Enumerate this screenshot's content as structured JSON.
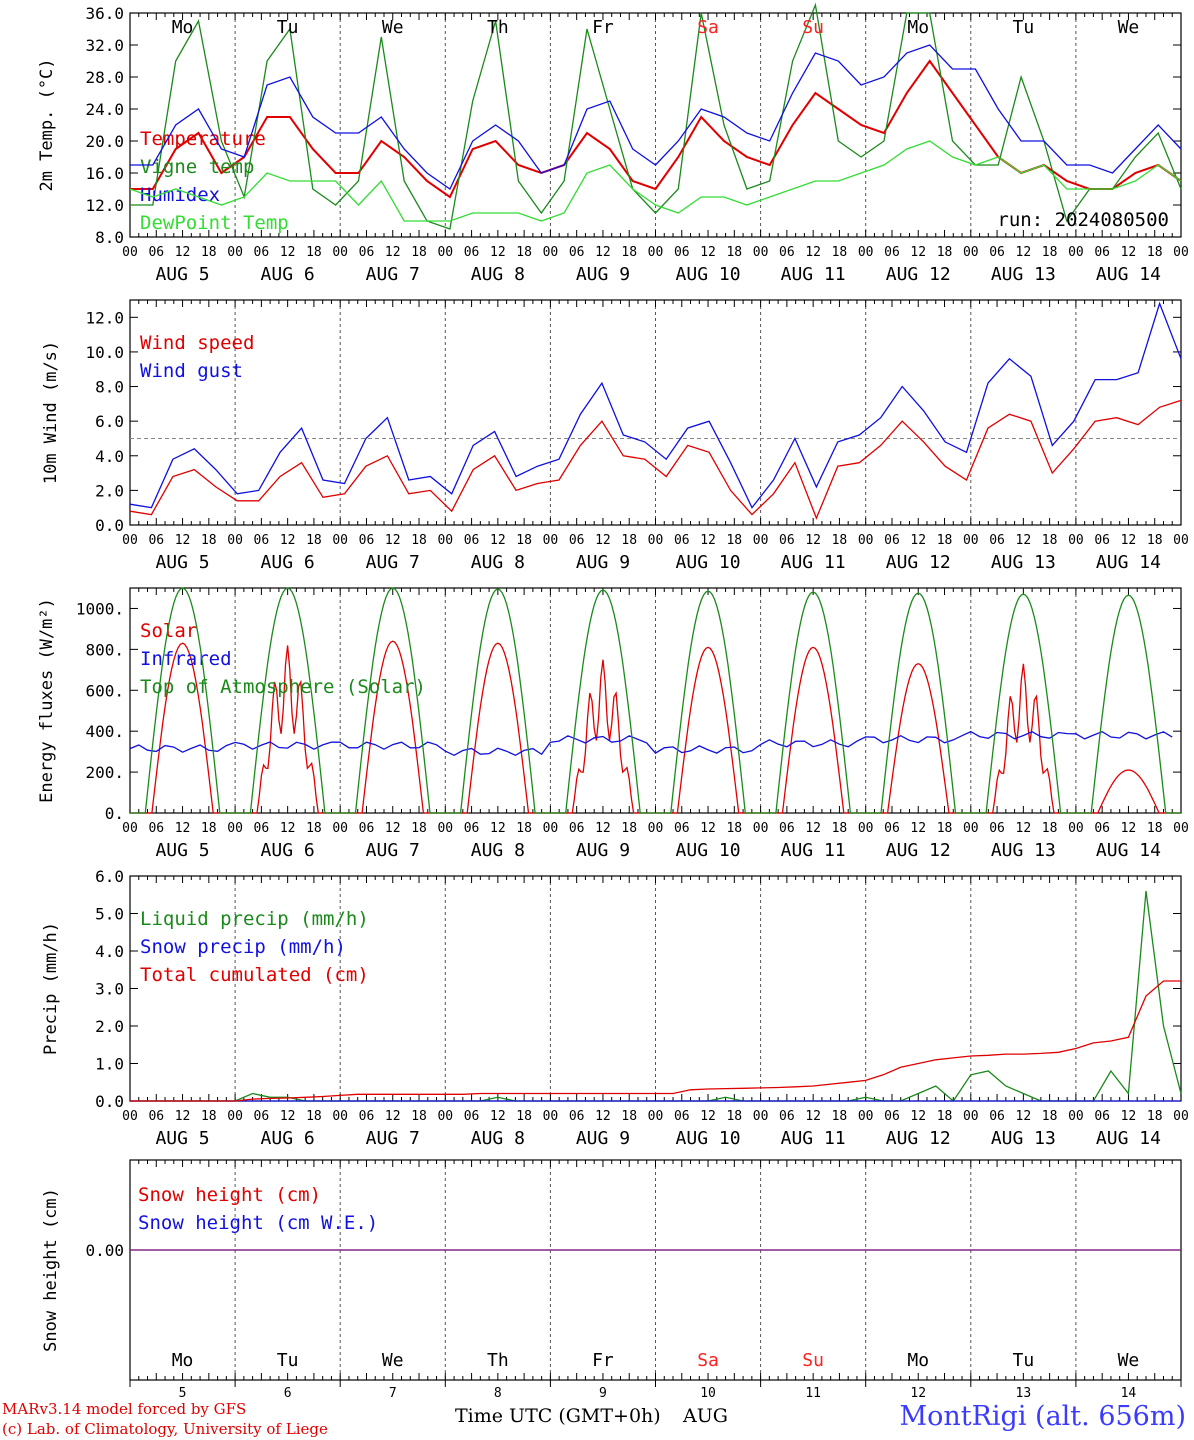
{
  "run_label": "run: 2024080500",
  "hour_labels": [
    "00",
    "06",
    "12",
    "18"
  ],
  "end_hour_label": "00",
  "days": [
    {
      "dow": "Mo",
      "date": "AUG  5",
      "num": "5",
      "dow_color": "#000000"
    },
    {
      "dow": "Tu",
      "date": "AUG  6",
      "num": "6",
      "dow_color": "#000000"
    },
    {
      "dow": "We",
      "date": "AUG  7",
      "num": "7",
      "dow_color": "#000000"
    },
    {
      "dow": "Th",
      "date": "AUG  8",
      "num": "8",
      "dow_color": "#000000"
    },
    {
      "dow": "Fr",
      "date": "AUG  9",
      "num": "9",
      "dow_color": "#000000"
    },
    {
      "dow": "Sa",
      "date": "AUG 10",
      "num": "10",
      "dow_color": "#ff2020"
    },
    {
      "dow": "Su",
      "date": "AUG 11",
      "num": "11",
      "dow_color": "#ff2020"
    },
    {
      "dow": "Mo",
      "date": "AUG 12",
      "num": "12",
      "dow_color": "#000000"
    },
    {
      "dow": "Tu",
      "date": "AUG 13",
      "num": "13",
      "dow_color": "#000000"
    },
    {
      "dow": "We",
      "date": "AUG 14",
      "num": "14",
      "dow_color": "#000000"
    }
  ],
  "footer": {
    "model_line": "MARv3.14 model forced by GFS",
    "copyright_line": "(c) Lab. of Climatology, University of Liege",
    "x_title": "Time UTC (GMT+0h)",
    "x_month": "AUG",
    "station": "MontRigi (alt. 656m)"
  },
  "colors": {
    "red": "#e00000",
    "green": "#1a8a1a",
    "blue": "#1010e0",
    "lightgreen": "#33dd33",
    "purple": "#7f1f7f"
  },
  "chart_data": [
    {
      "id": "temp",
      "type": "line",
      "ylabel": "2m Temp. (°C)",
      "ylim": [
        8,
        36
      ],
      "yticks": [
        "8.0",
        "12.0",
        "16.0",
        "20.0",
        "24.0",
        "28.0",
        "32.0",
        "36.0"
      ],
      "x_unit": "hours since AUG 5 00 UTC",
      "x_step": 6,
      "series": [
        {
          "name": "Temperature",
          "color": "red",
          "values": [
            14,
            14,
            19,
            21,
            16,
            18,
            23,
            23,
            19,
            16,
            16,
            20,
            18,
            15,
            13,
            19,
            20,
            17,
            16,
            17,
            21,
            19,
            15,
            14,
            18,
            23,
            20,
            18,
            17,
            22,
            26,
            24,
            22,
            21,
            26,
            30,
            26,
            22,
            18,
            16,
            17,
            15,
            14,
            14,
            16,
            17,
            15
          ]
        },
        {
          "name": "Vigne temp",
          "color": "green",
          "values": [
            12,
            12,
            30,
            35,
            20,
            13,
            30,
            34,
            14,
            12,
            15,
            33,
            15,
            10,
            9,
            25,
            35,
            15,
            11,
            15,
            34,
            24,
            14,
            11,
            14,
            36,
            22,
            14,
            15,
            30,
            37,
            20,
            18,
            20,
            36,
            36,
            20,
            17,
            17,
            28,
            20,
            10,
            14,
            14,
            18,
            21,
            14
          ]
        },
        {
          "name": "Humidex",
          "color": "blue",
          "values": [
            17,
            17,
            22,
            24,
            19,
            18,
            27,
            28,
            23,
            21,
            21,
            23,
            19,
            16,
            14,
            20,
            22,
            20,
            16,
            17,
            24,
            25,
            19,
            17,
            20,
            24,
            23,
            21,
            20,
            26,
            31,
            30,
            27,
            28,
            31,
            32,
            29,
            29,
            24,
            20,
            20,
            17,
            17,
            16,
            19,
            22,
            19
          ]
        },
        {
          "name": "DewPoint Temp",
          "color": "lightgreen",
          "values": [
            14,
            13,
            14,
            13,
            12,
            13,
            16,
            15,
            15,
            15,
            12,
            15,
            10,
            10,
            10,
            11,
            11,
            11,
            10,
            11,
            16,
            17,
            14,
            12,
            11,
            13,
            13,
            12,
            13,
            14,
            15,
            15,
            16,
            17,
            19,
            20,
            18,
            17,
            18,
            16,
            17,
            14,
            14,
            14,
            15,
            17,
            15
          ]
        }
      ]
    },
    {
      "id": "wind",
      "type": "line",
      "ylabel": "10m Wind (m/s)",
      "ylim": [
        0,
        13
      ],
      "yticks": [
        "0.0",
        "2.0",
        "4.0",
        "6.0",
        "8.0",
        "10.0",
        "12.0"
      ],
      "hline": 5,
      "x_unit": "hours since AUG 5 00 UTC",
      "x_step": 6,
      "series": [
        {
          "name": "Wind speed",
          "color": "red",
          "values": [
            0.8,
            0.6,
            2.8,
            3.2,
            2.2,
            1.4,
            1.4,
            2.8,
            3.6,
            1.6,
            1.8,
            3.4,
            4.0,
            1.8,
            2.0,
            0.8,
            3.2,
            4.0,
            2.0,
            2.4,
            2.6,
            4.6,
            6.0,
            4.0,
            3.8,
            2.8,
            4.6,
            4.2,
            2.0,
            0.6,
            1.8,
            3.6,
            0.4,
            3.4,
            3.6,
            4.6,
            6.0,
            4.8,
            3.4,
            2.6,
            5.6,
            6.4,
            6.0,
            3.0,
            4.4,
            6.0,
            6.2,
            5.8,
            6.8,
            7.2
          ]
        },
        {
          "name": "Wind gust",
          "color": "blue",
          "values": [
            1.2,
            1.0,
            3.8,
            4.4,
            3.2,
            1.8,
            2.0,
            4.2,
            5.6,
            2.6,
            2.4,
            5.0,
            6.2,
            2.6,
            2.8,
            1.8,
            4.6,
            5.4,
            2.8,
            3.4,
            3.8,
            6.4,
            8.2,
            5.2,
            4.8,
            3.8,
            5.6,
            6.0,
            3.6,
            1.0,
            2.6,
            5.0,
            2.2,
            4.8,
            5.2,
            6.2,
            8.0,
            6.6,
            4.8,
            4.2,
            8.2,
            9.6,
            8.6,
            4.6,
            6.0,
            8.4,
            8.4,
            8.8,
            12.8,
            9.6
          ]
        }
      ]
    },
    {
      "id": "energy",
      "type": "line",
      "ylabel": "Energy fluxes (W/m²)",
      "ylim": [
        0,
        1100
      ],
      "yticks": [
        "0.",
        "200.",
        "400.",
        "600.",
        "800.",
        "1000."
      ],
      "series": [
        {
          "name": "Solar",
          "color": "red",
          "daily_peak": [
            830,
            820,
            840,
            830,
            750,
            810,
            810,
            730,
            730,
            210
          ]
        },
        {
          "name": "Infrared",
          "color": "blue",
          "daily_level": [
            315,
            330,
            330,
            300,
            360,
            310,
            340,
            360,
            380,
            380
          ]
        },
        {
          "name": "Top of Atmosphere (Solar)",
          "color": "green",
          "daily_peak": [
            1100,
            1100,
            1100,
            1095,
            1090,
            1085,
            1080,
            1075,
            1070,
            1065
          ]
        }
      ]
    },
    {
      "id": "precip",
      "type": "line",
      "ylabel": "Precip (mm/h)",
      "ylim": [
        0,
        6
      ],
      "yticks": [
        "0.0",
        "1.0",
        "2.0",
        "3.0",
        "4.0",
        "5.0",
        "6.0"
      ],
      "x_unit": "hours since AUG 5 00 UTC",
      "x_step": 6,
      "series": [
        {
          "name": "Liquid precip (mm/h)",
          "color": "green",
          "values": [
            0,
            0,
            0,
            0,
            0,
            0,
            0,
            0.2,
            0.1,
            0.1,
            0,
            0,
            0,
            0,
            0,
            0,
            0,
            0,
            0,
            0,
            0,
            0.1,
            0,
            0,
            0,
            0,
            0,
            0,
            0,
            0,
            0,
            0,
            0,
            0,
            0.1,
            0,
            0,
            0,
            0,
            0,
            0,
            0,
            0.1,
            0,
            0,
            0.2,
            0.4,
            0,
            0.7,
            0.8,
            0.4,
            0.2,
            0,
            0,
            0,
            0,
            0.8,
            0.2,
            5.6,
            2.0,
            0.2
          ]
        },
        {
          "name": "Snow precip (mm/h)",
          "color": "blue",
          "values": [
            0,
            0,
            0,
            0,
            0,
            0,
            0,
            0,
            0,
            0,
            0,
            0,
            0,
            0,
            0,
            0,
            0,
            0,
            0,
            0,
            0,
            0,
            0,
            0,
            0,
            0,
            0,
            0,
            0,
            0,
            0,
            0,
            0,
            0,
            0,
            0,
            0,
            0,
            0,
            0,
            0,
            0,
            0,
            0,
            0,
            0,
            0,
            0,
            0,
            0,
            0,
            0,
            0,
            0,
            0,
            0,
            0,
            0,
            0,
            0,
            0
          ]
        },
        {
          "name": "Total cumulated (cm)",
          "color": "red",
          "values": [
            0,
            0,
            0,
            0,
            0,
            0,
            0,
            0.05,
            0.07,
            0.08,
            0.1,
            0.12,
            0.15,
            0.18,
            0.18,
            0.18,
            0.18,
            0.18,
            0.18,
            0.18,
            0.2,
            0.2,
            0.2,
            0.2,
            0.2,
            0.2,
            0.2,
            0.2,
            0.2,
            0.2,
            0.2,
            0.2,
            0.3,
            0.32,
            0.33,
            0.34,
            0.35,
            0.36,
            0.38,
            0.4,
            0.45,
            0.5,
            0.55,
            0.7,
            0.9,
            1.0,
            1.1,
            1.15,
            1.2,
            1.22,
            1.25,
            1.25,
            1.27,
            1.3,
            1.4,
            1.55,
            1.6,
            1.7,
            2.8,
            3.2,
            3.2
          ]
        }
      ]
    },
    {
      "id": "snow",
      "type": "line",
      "ylabel": "Snow height (cm)",
      "ylim": [
        -1,
        1
      ],
      "yticks": [
        "0.00"
      ],
      "series": [
        {
          "name": "Snow height (cm)",
          "color": "red",
          "values": [
            0,
            0
          ]
        },
        {
          "name": "Snow height (cm W.E.)",
          "color": "blue",
          "values": [
            0,
            0
          ]
        }
      ]
    }
  ]
}
